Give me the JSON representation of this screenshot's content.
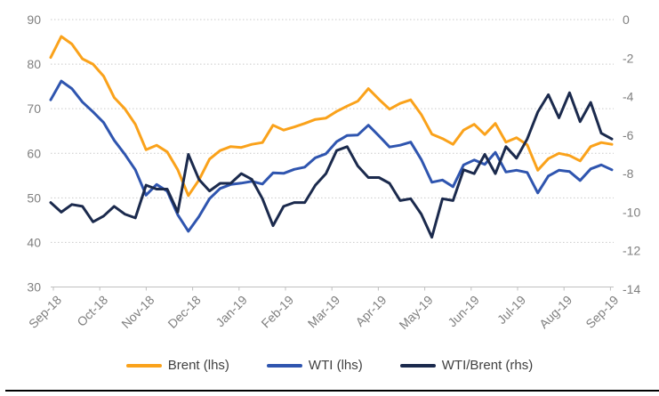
{
  "chart_data": {
    "type": "line",
    "x_tick_labels": [
      "Sep-18",
      "Oct-18",
      "Nov-18",
      "Dec-18",
      "Jan-19",
      "Feb-19",
      "Mar-19",
      "Apr-19",
      "May-19",
      "Jun-19",
      "Jul-19",
      "Aug-19",
      "Sep-19"
    ],
    "left_axis": {
      "min": 30,
      "max": 90,
      "ticks": [
        90,
        80,
        70,
        60,
        50,
        40,
        30
      ]
    },
    "right_axis": {
      "min": -14,
      "max": 0,
      "ticks": [
        0,
        -2,
        -4,
        -6,
        -8,
        -10,
        -12,
        -14
      ]
    },
    "grid": "horizontal dotted, legend bottom",
    "legend_position": "bottom",
    "series": [
      {
        "name": "Brent (lhs)",
        "axis": "left",
        "color": "#FAA21B",
        "values": [
          81.5,
          86.2,
          84.5,
          81.2,
          80.0,
          77.3,
          72.5,
          70.0,
          66.5,
          60.8,
          61.8,
          60.3,
          56.3,
          50.5,
          54.0,
          58.7,
          60.6,
          61.5,
          61.3,
          62.0,
          62.4,
          66.3,
          65.2,
          65.9,
          66.7,
          67.6,
          67.9,
          69.4,
          70.6,
          71.7,
          74.5,
          72.1,
          69.9,
          71.2,
          72.0,
          68.7,
          64.3,
          63.3,
          62.0,
          65.2,
          66.5,
          64.2,
          66.7,
          62.5,
          63.5,
          61.9,
          56.2,
          58.8,
          60.0,
          59.5,
          58.3,
          61.5,
          62.4,
          62.0
        ]
      },
      {
        "name": "WTI (lhs)",
        "axis": "left",
        "color": "#2F55AF",
        "values": [
          72.0,
          76.2,
          74.5,
          71.5,
          69.3,
          66.9,
          62.9,
          59.8,
          56.3,
          50.6,
          53.0,
          51.5,
          46.2,
          42.5,
          45.8,
          49.8,
          52.1,
          53.0,
          53.3,
          53.7,
          53.1,
          55.6,
          55.5,
          56.4,
          56.9,
          59.0,
          59.9,
          62.6,
          64.0,
          64.1,
          66.3,
          63.9,
          61.4,
          61.8,
          62.5,
          58.6,
          53.5,
          54.0,
          52.5,
          57.4,
          58.5,
          57.5,
          60.2,
          55.8,
          56.2,
          55.7,
          51.1,
          54.9,
          56.2,
          55.9,
          53.9,
          56.5,
          57.4,
          56.3
        ]
      },
      {
        "name": "WTI/Brent (rhs)",
        "axis": "right",
        "color": "#1B2A4D",
        "values": [
          -9.5,
          -10.0,
          -9.6,
          -9.7,
          -10.5,
          -10.2,
          -9.7,
          -10.1,
          -10.3,
          -8.6,
          -8.8,
          -8.8,
          -10.0,
          -7.0,
          -8.3,
          -8.9,
          -8.5,
          -8.5,
          -8.0,
          -8.3,
          -9.3,
          -10.7,
          -9.7,
          -9.5,
          -9.5,
          -8.6,
          -8.0,
          -6.8,
          -6.6,
          -7.6,
          -8.2,
          -8.2,
          -8.5,
          -9.4,
          -9.3,
          -10.1,
          -11.3,
          -9.3,
          -9.4,
          -7.8,
          -8.0,
          -7.0,
          -8.0,
          -6.6,
          -7.2,
          -6.2,
          -4.8,
          -3.9,
          -5.1,
          -3.8,
          -5.3,
          -4.3,
          -5.9,
          -6.2
        ]
      }
    ]
  },
  "colors": {
    "gridline": "#c9c9c9",
    "axis_line": "#bfbfbf",
    "axis_text": "#7f7f7f",
    "legend_text": "#404040",
    "background": "#ffffff",
    "bottom_border": "#000000"
  }
}
